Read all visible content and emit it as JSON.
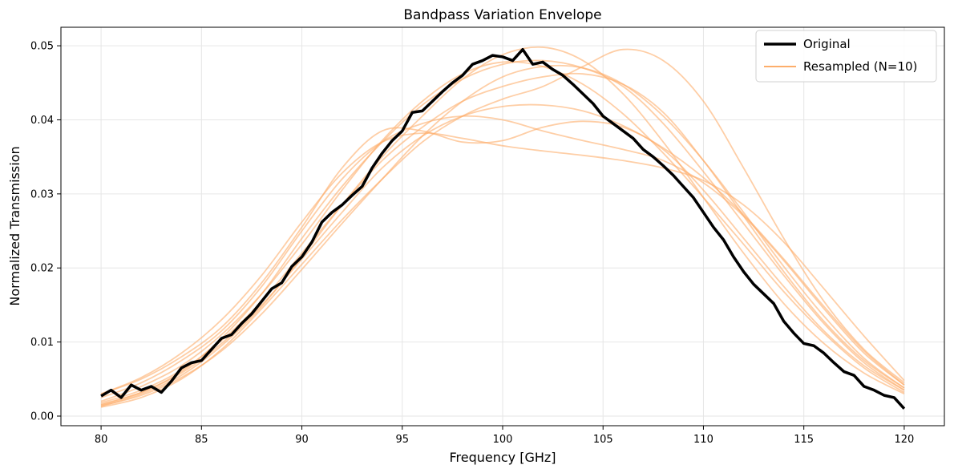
{
  "chart_data": {
    "type": "line",
    "title": "Bandpass Variation Envelope",
    "xlabel": "Frequency [GHz]",
    "ylabel": "Normalized Transmission",
    "xlim": [
      78,
      122
    ],
    "ylim": [
      -0.0013,
      0.0525
    ],
    "xticks": [
      80,
      85,
      90,
      95,
      100,
      105,
      110,
      115,
      120
    ],
    "xtick_labels": [
      "80",
      "85",
      "90",
      "95",
      "100",
      "105",
      "110",
      "115",
      "120"
    ],
    "yticks": [
      0,
      0.01,
      0.02,
      0.03,
      0.04,
      0.05
    ],
    "ytick_labels": [
      "0.00",
      "0.01",
      "0.02",
      "0.03",
      "0.04",
      "0.05"
    ],
    "grid": true,
    "legend_position": "top-right",
    "colors": {
      "original": "#000000",
      "resampled": "#fdae6b"
    },
    "series": [
      {
        "name": "Original",
        "style": "thick-black",
        "x": [
          80,
          80.5,
          81,
          81.5,
          82,
          82.5,
          83,
          83.5,
          84,
          84.5,
          85,
          85.5,
          86,
          86.5,
          87,
          87.5,
          88,
          88.5,
          89,
          89.5,
          90,
          90.5,
          91,
          91.5,
          92,
          92.5,
          93,
          93.5,
          94,
          94.5,
          95,
          95.5,
          96,
          96.5,
          97,
          97.5,
          98,
          98.5,
          99,
          99.5,
          100,
          100.5,
          101,
          101.5,
          102,
          102.5,
          103,
          103.5,
          104,
          104.5,
          105,
          105.5,
          106,
          106.5,
          107,
          107.5,
          108,
          108.5,
          109,
          109.5,
          110,
          110.5,
          111,
          111.5,
          112,
          112.5,
          113,
          113.5,
          114,
          114.5,
          115,
          115.5,
          116,
          116.5,
          117,
          117.5,
          118,
          118.5,
          119,
          119.5,
          120
        ],
        "values": [
          0.0027,
          0.0035,
          0.0025,
          0.0042,
          0.0035,
          0.004,
          0.0032,
          0.0047,
          0.0065,
          0.0072,
          0.0075,
          0.009,
          0.0105,
          0.011,
          0.0125,
          0.0138,
          0.0155,
          0.0172,
          0.018,
          0.0202,
          0.0215,
          0.0235,
          0.0262,
          0.0275,
          0.0285,
          0.0298,
          0.031,
          0.0335,
          0.0355,
          0.0372,
          0.0385,
          0.041,
          0.0412,
          0.0425,
          0.0438,
          0.045,
          0.046,
          0.0475,
          0.048,
          0.0487,
          0.0485,
          0.048,
          0.0495,
          0.0475,
          0.0478,
          0.0468,
          0.046,
          0.0448,
          0.0435,
          0.0422,
          0.0405,
          0.0395,
          0.0385,
          0.0375,
          0.036,
          0.035,
          0.0338,
          0.0325,
          0.031,
          0.0295,
          0.0275,
          0.0255,
          0.0238,
          0.0215,
          0.0195,
          0.0178,
          0.0165,
          0.0152,
          0.0128,
          0.0112,
          0.0098,
          0.0095,
          0.0085,
          0.0072,
          0.006,
          0.0055,
          0.004,
          0.0035,
          0.0028,
          0.0025,
          0.001
        ]
      },
      {
        "name": "Resampled (N=10)",
        "style": "thin-orange",
        "x": [
          80,
          82,
          84,
          86,
          88,
          90,
          92,
          94,
          96,
          98,
          100,
          102,
          104,
          106,
          108,
          110,
          112,
          114,
          116,
          118,
          120
        ],
        "values": [
          0.0015,
          0.0032,
          0.006,
          0.0105,
          0.0165,
          0.024,
          0.031,
          0.037,
          0.042,
          0.0455,
          0.0475,
          0.048,
          0.047,
          0.0445,
          0.0395,
          0.033,
          0.026,
          0.019,
          0.0125,
          0.0072,
          0.0035
        ]
      },
      {
        "x": [
          80,
          82,
          84,
          86,
          88,
          90,
          92,
          94,
          96,
          98,
          100,
          102,
          104,
          106,
          108,
          110,
          112,
          114,
          116,
          118,
          120
        ],
        "values": [
          0.003,
          0.005,
          0.008,
          0.012,
          0.018,
          0.0255,
          0.0335,
          0.0385,
          0.0385,
          0.037,
          0.0372,
          0.039,
          0.0398,
          0.039,
          0.036,
          0.0305,
          0.024,
          0.0175,
          0.0115,
          0.0068,
          0.0035
        ]
      },
      {
        "x": [
          80,
          82,
          84,
          86,
          88,
          90,
          92,
          94,
          96,
          98,
          100,
          102,
          104,
          106,
          108,
          110,
          112,
          114,
          116,
          118,
          120
        ],
        "values": [
          0.0012,
          0.0025,
          0.005,
          0.009,
          0.0145,
          0.0205,
          0.0265,
          0.032,
          0.037,
          0.0405,
          0.0428,
          0.0445,
          0.0472,
          0.0495,
          0.048,
          0.0425,
          0.0335,
          0.024,
          0.0155,
          0.009,
          0.0045
        ]
      },
      {
        "x": [
          80,
          82,
          84,
          86,
          88,
          90,
          92,
          94,
          96,
          98,
          100,
          102,
          104,
          106,
          108,
          110,
          112,
          114,
          116,
          118,
          120
        ],
        "values": [
          0.0025,
          0.0045,
          0.0075,
          0.0115,
          0.0175,
          0.025,
          0.032,
          0.037,
          0.0395,
          0.0405,
          0.04,
          0.0385,
          0.0372,
          0.036,
          0.0345,
          0.0315,
          0.027,
          0.021,
          0.0145,
          0.0085,
          0.0042
        ]
      },
      {
        "x": [
          80,
          82,
          84,
          86,
          88,
          90,
          92,
          94,
          96,
          98,
          100,
          102,
          104,
          106,
          108,
          110,
          112,
          114,
          116,
          118,
          120
        ],
        "values": [
          0.0018,
          0.0035,
          0.0062,
          0.0102,
          0.0155,
          0.022,
          0.0285,
          0.0345,
          0.039,
          0.0425,
          0.0445,
          0.0458,
          0.0462,
          0.0448,
          0.041,
          0.0345,
          0.027,
          0.0195,
          0.0128,
          0.0075,
          0.0038
        ]
      },
      {
        "x": [
          80,
          82,
          84,
          86,
          88,
          90,
          92,
          94,
          96,
          98,
          100,
          102,
          104,
          106,
          108,
          110,
          112,
          114,
          116,
          118,
          120
        ],
        "values": [
          0.0013,
          0.003,
          0.0055,
          0.0095,
          0.0148,
          0.0215,
          0.0285,
          0.035,
          0.0405,
          0.0455,
          0.0488,
          0.0498,
          0.048,
          0.0435,
          0.037,
          0.0295,
          0.022,
          0.0152,
          0.0098,
          0.0058,
          0.003
        ]
      },
      {
        "x": [
          80,
          82,
          84,
          86,
          88,
          90,
          92,
          94,
          96,
          98,
          100,
          102,
          104,
          106,
          108,
          110,
          112,
          114,
          116,
          118,
          120
        ],
        "values": [
          0.003,
          0.0052,
          0.0085,
          0.013,
          0.019,
          0.0262,
          0.0328,
          0.037,
          0.0382,
          0.0375,
          0.0365,
          0.0358,
          0.0352,
          0.0345,
          0.0335,
          0.0318,
          0.0285,
          0.0235,
          0.0172,
          0.0108,
          0.0048
        ]
      },
      {
        "x": [
          80,
          82,
          84,
          86,
          88,
          90,
          92,
          94,
          96,
          98,
          100,
          102,
          104,
          106,
          108,
          110,
          112,
          114,
          116,
          118,
          120
        ],
        "values": [
          0.0014,
          0.0028,
          0.0052,
          0.0088,
          0.0138,
          0.0198,
          0.026,
          0.032,
          0.0378,
          0.0425,
          0.0458,
          0.0472,
          0.047,
          0.0448,
          0.0405,
          0.0345,
          0.0275,
          0.0202,
          0.0135,
          0.0078,
          0.0038
        ]
      },
      {
        "x": [
          80,
          82,
          84,
          86,
          88,
          90,
          92,
          94,
          96,
          98,
          100,
          102,
          104,
          106,
          108,
          110,
          112,
          114,
          116,
          118,
          120
        ],
        "values": [
          0.002,
          0.004,
          0.0068,
          0.011,
          0.0165,
          0.0232,
          0.0305,
          0.0372,
          0.0425,
          0.0462,
          0.0478,
          0.0472,
          0.0448,
          0.0408,
          0.0355,
          0.0295,
          0.0232,
          0.0168,
          0.0112,
          0.0065,
          0.0032
        ]
      },
      {
        "x": [
          80,
          82,
          84,
          86,
          88,
          90,
          92,
          94,
          96,
          98,
          100,
          102,
          104,
          106,
          108,
          110,
          112,
          114,
          116,
          118,
          120
        ],
        "values": [
          0.0016,
          0.0032,
          0.0058,
          0.0098,
          0.015,
          0.0212,
          0.0275,
          0.0335,
          0.0378,
          0.0405,
          0.0418,
          0.042,
          0.0412,
          0.0392,
          0.0362,
          0.0322,
          0.0272,
          0.0212,
          0.0148,
          0.0088,
          0.0042
        ]
      }
    ],
    "legend": [
      {
        "label": "Original",
        "style": "thick-black"
      },
      {
        "label": "Resampled (N=10)",
        "style": "thin-orange"
      }
    ]
  }
}
